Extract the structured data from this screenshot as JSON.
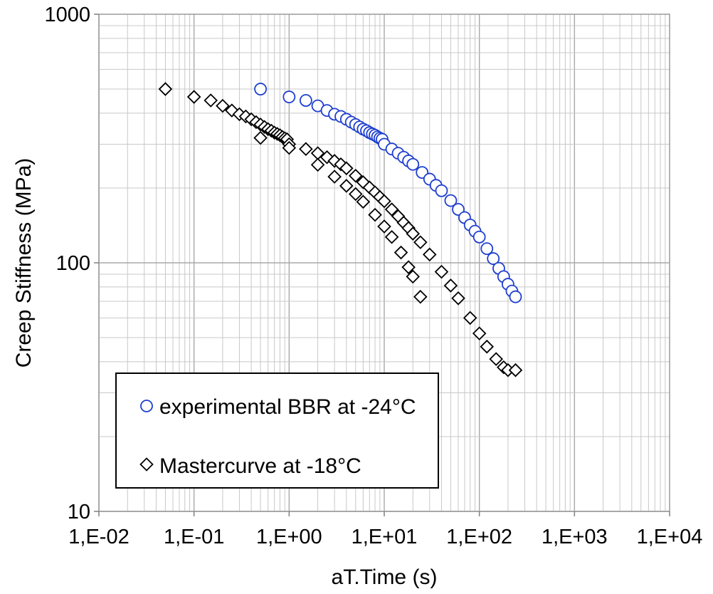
{
  "chart_data": {
    "type": "scatter",
    "title": "",
    "xlabel": "aT.Time (s)",
    "ylabel": "Creep Stiffness (MPa)",
    "x_scale": "log",
    "y_scale": "log",
    "xlim": [
      0.01,
      10000
    ],
    "ylim": [
      10,
      1000
    ],
    "x_ticks": [
      0.01,
      0.1,
      1,
      10,
      100,
      1000,
      10000
    ],
    "x_tick_labels": [
      "1,E-02",
      "1,E-01",
      "1,E+00",
      "1,E+01",
      "1,E+02",
      "1,E+03",
      "1,E+04"
    ],
    "y_ticks": [
      10,
      100,
      1000
    ],
    "y_tick_labels": [
      "10",
      "100",
      "1000"
    ],
    "grid": true,
    "legend_position": "bottom-left",
    "series": [
      {
        "name": "experimental BBR at -24°C",
        "marker": "circle",
        "color": "#1f3fcf",
        "x": [
          0.5,
          1.0,
          1.5,
          2.0,
          2.5,
          3.0,
          3.5,
          4.0,
          4.5,
          5.0,
          5.5,
          6.0,
          6.5,
          7.0,
          7.5,
          8.0,
          8.5,
          9.0,
          9.5,
          10.0,
          12.0,
          14.0,
          16.0,
          18.0,
          20.0,
          25.0,
          30.0,
          35.0,
          40.0,
          50.0,
          60.0,
          70.0,
          80.0,
          90.0,
          100.0,
          120.0,
          140.0,
          160.0,
          180.0,
          200.0,
          220.0,
          240.0
        ],
        "y": [
          500,
          465,
          450,
          428,
          410,
          396,
          388,
          378,
          368,
          360,
          352,
          345,
          340,
          334,
          330,
          326,
          321,
          317,
          314,
          300,
          287,
          276,
          266,
          257,
          249,
          231,
          217,
          205,
          195,
          178,
          164,
          152,
          142,
          134,
          127,
          114,
          104,
          95,
          88,
          82,
          77,
          73
        ]
      },
      {
        "name": "Mastercurve at -18°C",
        "marker": "diamond",
        "color": "#000000",
        "x": [
          0.05,
          0.1,
          0.15,
          0.2,
          0.25,
          0.3,
          0.35,
          0.4,
          0.45,
          0.5,
          0.55,
          0.6,
          0.65,
          0.7,
          0.75,
          0.8,
          0.85,
          0.9,
          0.95,
          1.0,
          1.5,
          2.0,
          2.5,
          3.0,
          3.5,
          4.0,
          5.0,
          6.0,
          7.0,
          8.0,
          9.0,
          10.0,
          12.0,
          14.0,
          16.0,
          18.0,
          20.0,
          24.0,
          30.0,
          40.0,
          50.0,
          60.0,
          80.0,
          100.0,
          120.0,
          150.0,
          180.0,
          200.0,
          240.0,
          0.5,
          1.0,
          2.0,
          3.0,
          4.0,
          5.0,
          6.0,
          8.0,
          10.0,
          12.0,
          15.0,
          18.0,
          20.0,
          24.0
        ],
        "y": [
          500,
          465,
          450,
          428,
          410,
          396,
          388,
          378,
          368,
          360,
          352,
          345,
          340,
          334,
          330,
          326,
          321,
          317,
          314,
          300,
          287,
          276,
          266,
          257,
          249,
          240,
          224,
          211,
          201,
          192,
          184,
          177,
          164,
          154,
          145,
          138,
          131,
          121,
          108,
          92,
          81,
          72,
          60,
          52,
          46,
          41,
          38,
          37,
          37,
          318,
          290,
          248,
          222,
          204,
          189,
          176,
          156,
          140,
          127,
          110,
          96,
          88,
          73
        ]
      }
    ]
  }
}
